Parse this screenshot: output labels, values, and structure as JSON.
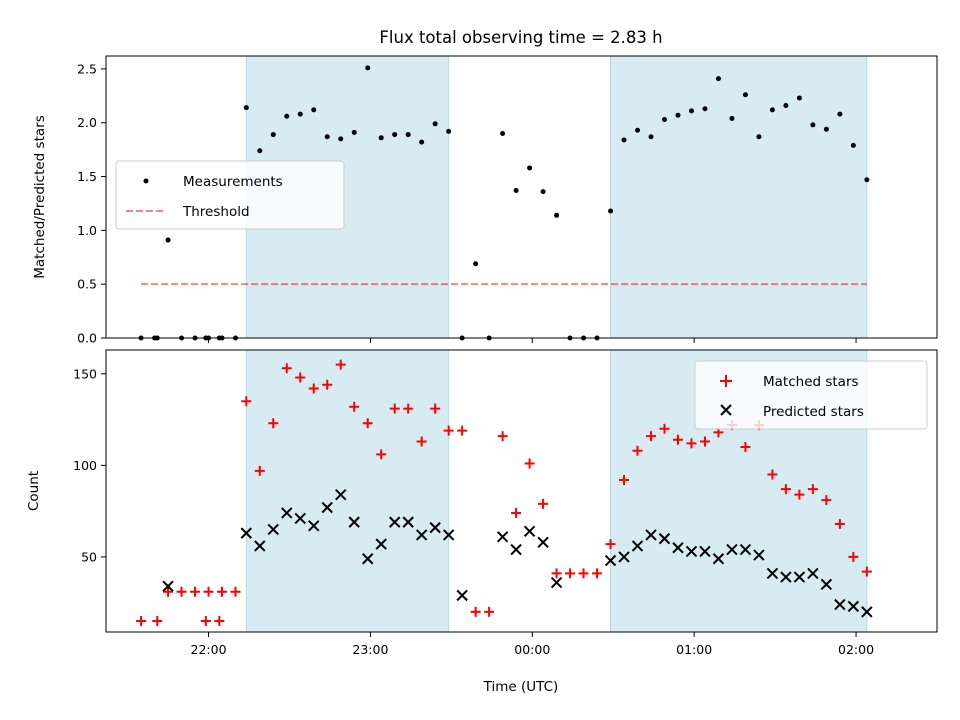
{
  "chart_data": [
    {
      "type": "scatter",
      "title": "Flux total observing time = 2.83 h",
      "xlabel": "",
      "ylabel": "Matched/Predicted stars",
      "ylim": [
        0,
        2.62
      ],
      "yticks": [
        0.0,
        0.5,
        1.0,
        1.5,
        2.0,
        2.5
      ],
      "ytick_labels": [
        "0.0",
        "0.5",
        "1.0",
        "1.5",
        "2.0",
        "2.5"
      ],
      "xlim": [
        "21:22",
        "02:30"
      ],
      "xticks": [
        "22:00",
        "23:00",
        "00:00",
        "01:00",
        "02:00"
      ],
      "shaded_intervals": [
        [
          "22:14",
          "23:29"
        ],
        [
          "00:29",
          "02:04"
        ]
      ],
      "legend": {
        "placement": "center-left",
        "entries": [
          "Measurements",
          "Threshold"
        ]
      },
      "threshold": {
        "name": "Threshold",
        "value": 0.5,
        "x_range": [
          "21:35",
          "02:04"
        ]
      },
      "series": [
        {
          "name": "Measurements",
          "marker": "dot",
          "color": "#000000",
          "x": [
            "21:35",
            "21:41",
            "21:45",
            "21:50",
            "21:55",
            "22:00",
            "22:05",
            "22:10",
            "21:59",
            "22:04",
            "21:40",
            "22:14",
            "22:19",
            "22:24",
            "22:29",
            "22:34",
            "22:39",
            "22:44",
            "22:49",
            "22:54",
            "22:59",
            "23:04",
            "23:09",
            "23:14",
            "23:19",
            "23:24",
            "23:29",
            "23:34",
            "23:39",
            "23:44",
            "23:49",
            "23:54",
            "23:59",
            "00:04",
            "00:09",
            "00:14",
            "00:19",
            "00:24",
            "00:29",
            "00:34",
            "00:39",
            "00:44",
            "00:49",
            "00:54",
            "00:59",
            "01:04",
            "01:09",
            "01:14",
            "01:19",
            "01:24",
            "01:29",
            "01:34",
            "01:39",
            "01:44",
            "01:49",
            "01:54",
            "01:59",
            "02:04"
          ],
          "y": [
            0.0,
            0.0,
            0.91,
            0.0,
            0.0,
            0.0,
            0.0,
            0.0,
            0.0,
            0.0,
            0.0,
            2.14,
            1.74,
            1.89,
            2.06,
            2.08,
            2.12,
            1.87,
            1.85,
            1.91,
            2.51,
            1.86,
            1.89,
            1.89,
            1.82,
            1.99,
            1.92,
            0.0,
            0.69,
            0.0,
            1.9,
            1.37,
            1.58,
            1.36,
            1.14,
            0.0,
            0.0,
            0.0,
            1.18,
            1.84,
            1.93,
            1.87,
            2.03,
            2.07,
            2.11,
            2.13,
            2.41,
            2.04,
            2.26,
            1.87,
            2.12,
            2.16,
            2.23,
            1.98,
            1.94,
            2.08,
            1.79,
            1.47
          ]
        }
      ]
    },
    {
      "type": "scatter",
      "title": "",
      "xlabel": "Time (UTC)",
      "ylabel": "Count",
      "ylim": [
        9,
        163
      ],
      "yticks": [
        50,
        100,
        150
      ],
      "ytick_labels": [
        "50",
        "100",
        "150"
      ],
      "xlim": [
        "21:22",
        "02:30"
      ],
      "xticks": [
        "22:00",
        "23:00",
        "00:00",
        "01:00",
        "02:00"
      ],
      "xtick_labels": [
        "22:00",
        "23:00",
        "00:00",
        "01:00",
        "02:00"
      ],
      "shaded_intervals": [
        [
          "22:14",
          "23:29"
        ],
        [
          "00:29",
          "02:04"
        ]
      ],
      "legend": {
        "placement": "top-right",
        "entries": [
          "Matched stars",
          "Predicted stars"
        ]
      },
      "series": [
        {
          "name": "Matched stars",
          "marker": "plus",
          "color": "#ff0000",
          "x": [
            "21:35",
            "21:41",
            "21:45",
            "21:50",
            "21:55",
            "22:00",
            "22:05",
            "22:10",
            "21:59",
            "22:04",
            "22:14",
            "22:19",
            "22:24",
            "22:29",
            "22:34",
            "22:39",
            "22:44",
            "22:49",
            "22:54",
            "22:59",
            "23:04",
            "23:09",
            "23:14",
            "23:19",
            "23:24",
            "23:29",
            "23:34",
            "23:39",
            "23:44",
            "23:49",
            "23:54",
            "23:59",
            "00:04",
            "00:09",
            "00:14",
            "00:19",
            "00:24",
            "00:29",
            "00:34",
            "00:39",
            "00:44",
            "00:49",
            "00:54",
            "00:59",
            "01:04",
            "01:09",
            "01:14",
            "01:19",
            "01:24",
            "01:29",
            "01:34",
            "01:39",
            "01:44",
            "01:49",
            "01:54",
            "01:59",
            "02:04"
          ],
          "y": [
            15,
            15,
            31,
            31,
            31,
            31,
            31,
            31,
            15,
            15,
            135,
            97,
            123,
            153,
            148,
            142,
            144,
            155,
            132,
            123,
            106,
            131,
            131,
            113,
            131,
            119,
            119,
            20,
            20,
            116,
            74,
            101,
            79,
            41,
            41,
            41,
            41,
            57,
            92,
            108,
            116,
            120,
            114,
            112,
            113,
            118,
            122,
            110,
            122,
            95,
            87,
            84,
            87,
            81,
            68,
            50,
            42
          ],
          "x_note": "",
          "y_note": ""
        },
        {
          "name": "Predicted stars",
          "marker": "x",
          "color": "#000000",
          "x": [
            "21:45",
            "22:14",
            "22:19",
            "22:24",
            "22:29",
            "22:34",
            "22:39",
            "22:44",
            "22:49",
            "22:54",
            "22:59",
            "23:04",
            "23:09",
            "23:14",
            "23:19",
            "23:24",
            "23:29",
            "23:34",
            "23:49",
            "23:54",
            "23:59",
            "00:04",
            "00:09",
            "00:29",
            "00:34",
            "00:39",
            "00:44",
            "00:49",
            "00:54",
            "00:59",
            "01:04",
            "01:09",
            "01:14",
            "01:19",
            "01:24",
            "01:29",
            "01:34",
            "01:39",
            "01:44",
            "01:49",
            "01:54",
            "01:59",
            "02:04"
          ],
          "y": [
            34,
            63,
            56,
            65,
            74,
            71,
            67,
            77,
            84,
            69,
            49,
            57,
            69,
            69,
            62,
            66,
            62,
            29,
            61,
            54,
            64,
            58,
            36,
            48,
            50,
            56,
            62,
            60,
            55,
            53,
            53,
            49,
            54,
            54,
            51,
            41,
            39,
            39,
            41,
            35,
            24,
            23,
            20
          ]
        }
      ]
    }
  ]
}
